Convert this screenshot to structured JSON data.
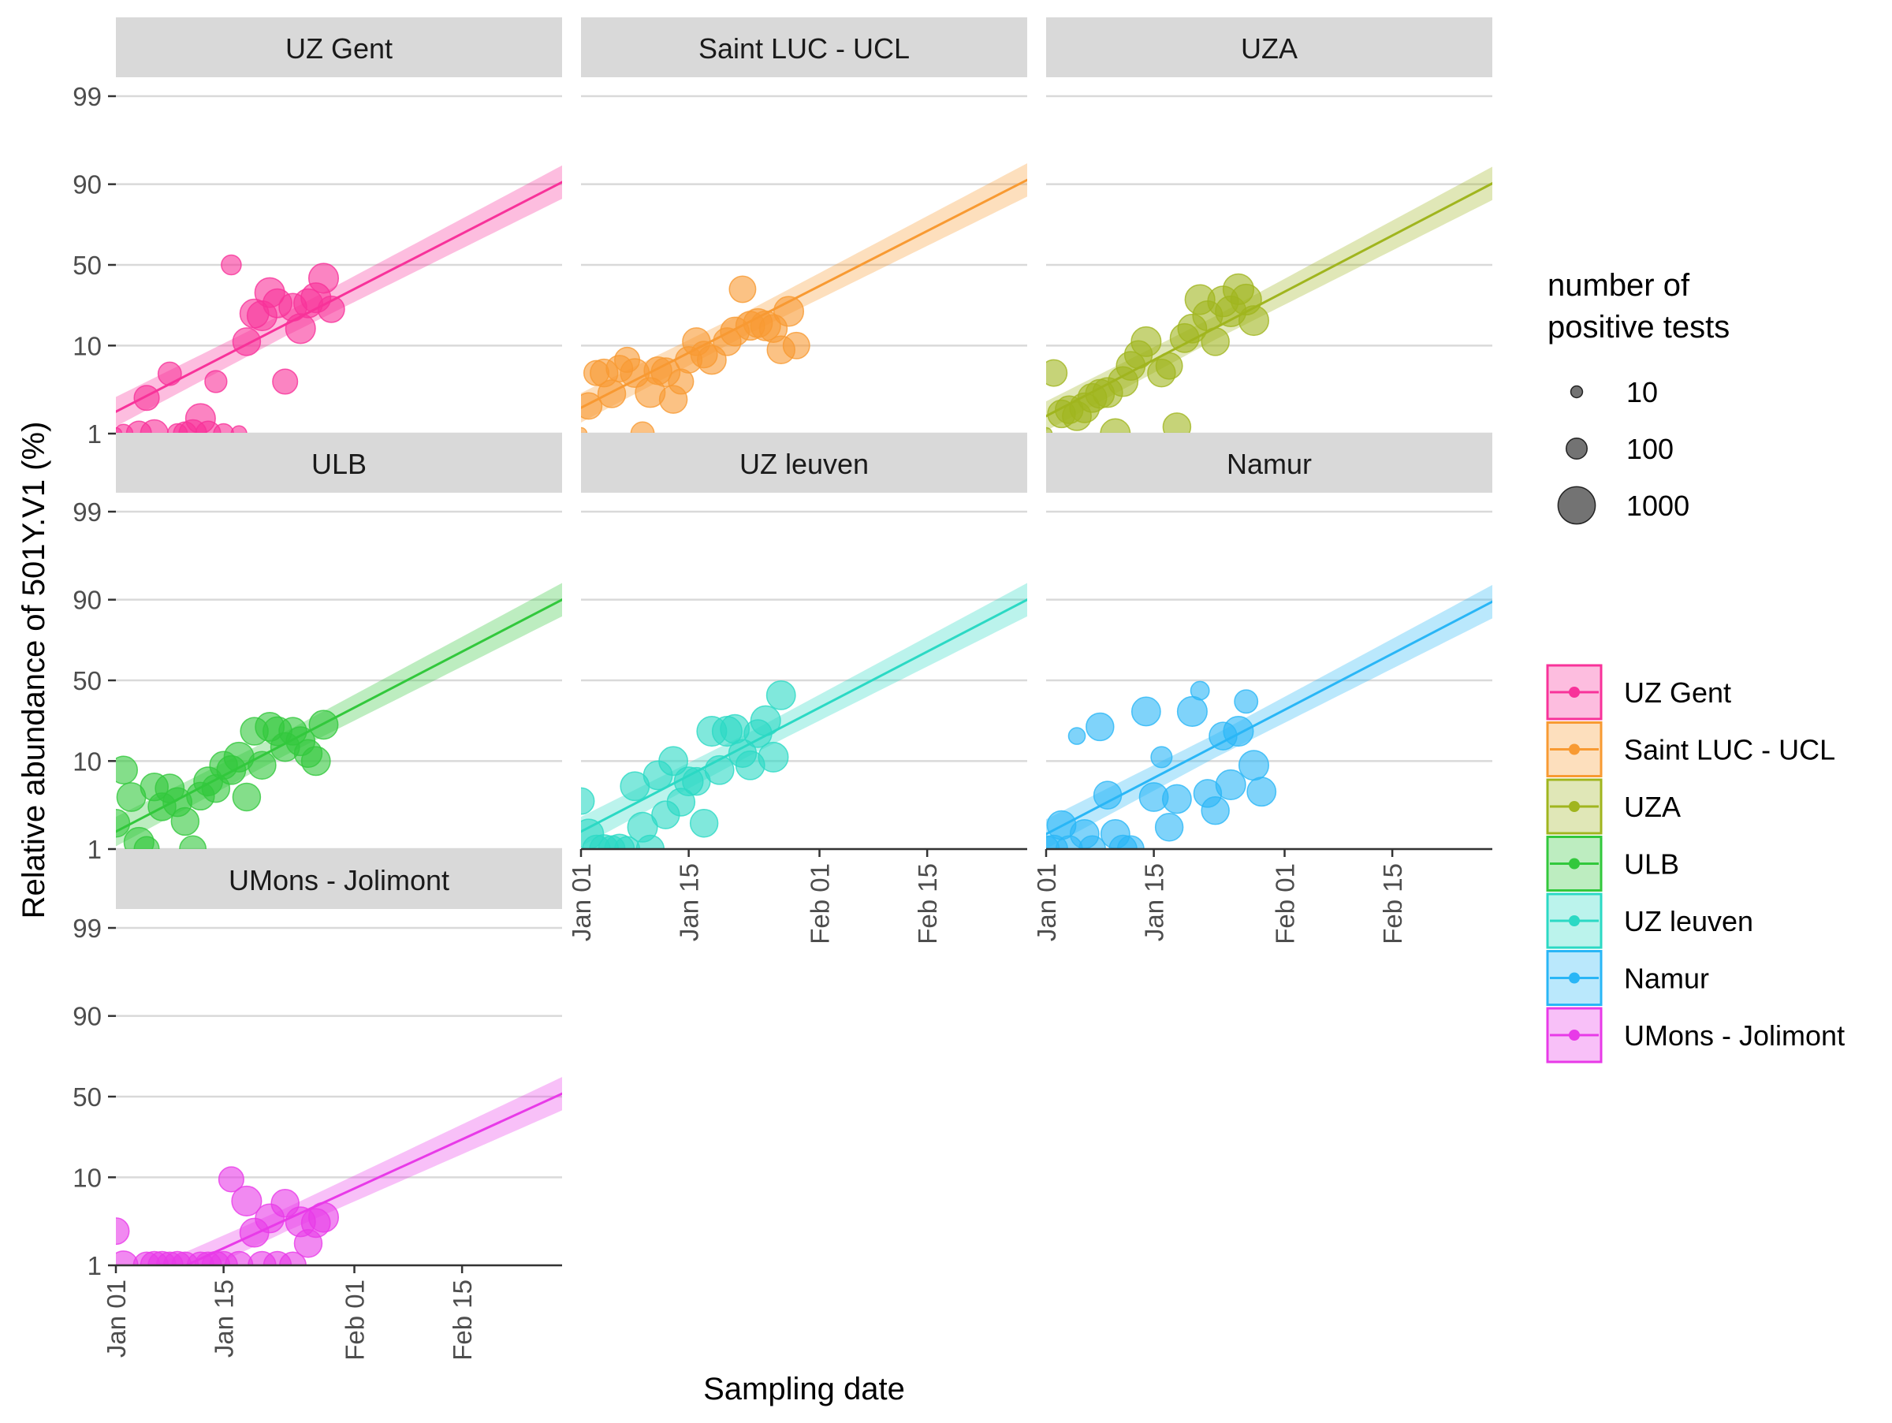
{
  "chart_data": {
    "type": "scatter",
    "title": "",
    "xlabel": "Sampling date",
    "ylabel": "Relative abundance of 501Y.V1 (%)",
    "x_ticks": [
      "Jan 01",
      "Jan 15",
      "Feb 01",
      "Feb 15"
    ],
    "x_tick_days": [
      0,
      14,
      31,
      45
    ],
    "y_ticks": [
      "1",
      "10",
      "50",
      "90",
      "99"
    ],
    "y_tick_values": [
      1,
      10,
      50,
      90,
      99
    ],
    "y_scale": "logit",
    "xlim_days": [
      0,
      58
    ],
    "ylim_pct": [
      1,
      99
    ],
    "grid": true,
    "legend_position": "right",
    "size_legend": {
      "title_line1": "number of",
      "title_line2": "positive tests",
      "entries": [
        "10",
        "100",
        "1000"
      ],
      "entry_values": [
        10,
        100,
        1000
      ]
    },
    "panels": [
      {
        "name": "UZ Gent",
        "color": "#F8329A",
        "fit": {
          "start_pct": 1.8,
          "end_pct": 90.5
        },
        "points": [
          {
            "day": 0,
            "pct": 1,
            "n": 10
          },
          {
            "day": 1,
            "pct": 1,
            "n": 60
          },
          {
            "day": 3,
            "pct": 1,
            "n": 200
          },
          {
            "day": 5,
            "pct": 1,
            "n": 300
          },
          {
            "day": 8,
            "pct": 1,
            "n": 80
          },
          {
            "day": 9,
            "pct": 1,
            "n": 150
          },
          {
            "day": 10,
            "pct": 1,
            "n": 300
          },
          {
            "day": 11,
            "pct": 1.5,
            "n": 400
          },
          {
            "day": 12,
            "pct": 1,
            "n": 200
          },
          {
            "day": 14,
            "pct": 1,
            "n": 80
          },
          {
            "day": 16,
            "pct": 1,
            "n": 30
          },
          {
            "day": 4,
            "pct": 2.6,
            "n": 200
          },
          {
            "day": 7,
            "pct": 4.9,
            "n": 150
          },
          {
            "day": 13,
            "pct": 4,
            "n": 120
          },
          {
            "day": 15,
            "pct": 50,
            "n": 80
          },
          {
            "day": 17,
            "pct": 11,
            "n": 300
          },
          {
            "day": 18,
            "pct": 21,
            "n": 350
          },
          {
            "day": 19,
            "pct": 20,
            "n": 400
          },
          {
            "day": 20,
            "pct": 32,
            "n": 400
          },
          {
            "day": 21,
            "pct": 26,
            "n": 350
          },
          {
            "day": 22,
            "pct": 4,
            "n": 200
          },
          {
            "day": 23,
            "pct": 24,
            "n": 300
          },
          {
            "day": 24,
            "pct": 15,
            "n": 400
          },
          {
            "day": 25,
            "pct": 26,
            "n": 350
          },
          {
            "day": 26,
            "pct": 29,
            "n": 400
          },
          {
            "day": 27,
            "pct": 41,
            "n": 400
          },
          {
            "day": 28,
            "pct": 23,
            "n": 250
          }
        ]
      },
      {
        "name": "Saint LUC - UCL",
        "color": "#F89A32",
        "fit": {
          "start_pct": 2.0,
          "end_pct": 91.0
        },
        "points": [
          {
            "day": 0,
            "pct": 1,
            "n": 10
          },
          {
            "day": 1,
            "pct": 2.1,
            "n": 250
          },
          {
            "day": 2,
            "pct": 5,
            "n": 200
          },
          {
            "day": 3,
            "pct": 5,
            "n": 300
          },
          {
            "day": 4,
            "pct": 2.9,
            "n": 300
          },
          {
            "day": 5,
            "pct": 5.6,
            "n": 250
          },
          {
            "day": 6,
            "pct": 7,
            "n": 200
          },
          {
            "day": 7,
            "pct": 5,
            "n": 350
          },
          {
            "day": 8,
            "pct": 1,
            "n": 150
          },
          {
            "day": 9,
            "pct": 3,
            "n": 400
          },
          {
            "day": 10,
            "pct": 5.3,
            "n": 300
          },
          {
            "day": 11,
            "pct": 5.1,
            "n": 350
          },
          {
            "day": 12,
            "pct": 2.5,
            "n": 300
          },
          {
            "day": 13,
            "pct": 4,
            "n": 200
          },
          {
            "day": 14,
            "pct": 7,
            "n": 250
          },
          {
            "day": 15,
            "pct": 11,
            "n": 300
          },
          {
            "day": 16,
            "pct": 8,
            "n": 250
          },
          {
            "day": 17,
            "pct": 7,
            "n": 350
          },
          {
            "day": 19,
            "pct": 11,
            "n": 300
          },
          {
            "day": 20,
            "pct": 14,
            "n": 350
          },
          {
            "day": 21,
            "pct": 34,
            "n": 250
          },
          {
            "day": 22,
            "pct": 16,
            "n": 350
          },
          {
            "day": 23,
            "pct": 17,
            "n": 350
          },
          {
            "day": 24,
            "pct": 16,
            "n": 400
          },
          {
            "day": 25,
            "pct": 15,
            "n": 300
          },
          {
            "day": 26,
            "pct": 9,
            "n": 300
          },
          {
            "day": 27,
            "pct": 22,
            "n": 400
          },
          {
            "day": 28,
            "pct": 10,
            "n": 250
          }
        ]
      },
      {
        "name": "UZA",
        "color": "#A0B51E",
        "fit": {
          "start_pct": 1.6,
          "end_pct": 90.2
        },
        "points": [
          {
            "day": 0,
            "pct": 1,
            "n": 10
          },
          {
            "day": 1,
            "pct": 5,
            "n": 250
          },
          {
            "day": 2,
            "pct": 1.7,
            "n": 300
          },
          {
            "day": 3,
            "pct": 1.9,
            "n": 300
          },
          {
            "day": 4,
            "pct": 1.6,
            "n": 350
          },
          {
            "day": 5,
            "pct": 2,
            "n": 400
          },
          {
            "day": 6,
            "pct": 2.6,
            "n": 350
          },
          {
            "day": 7,
            "pct": 2.9,
            "n": 350
          },
          {
            "day": 8,
            "pct": 3,
            "n": 400
          },
          {
            "day": 9,
            "pct": 1,
            "n": 400
          },
          {
            "day": 10,
            "pct": 4,
            "n": 400
          },
          {
            "day": 11,
            "pct": 6,
            "n": 350
          },
          {
            "day": 12,
            "pct": 8,
            "n": 300
          },
          {
            "day": 13,
            "pct": 11,
            "n": 400
          },
          {
            "day": 15,
            "pct": 5,
            "n": 300
          },
          {
            "day": 16,
            "pct": 6,
            "n": 250
          },
          {
            "day": 17,
            "pct": 1.2,
            "n": 300
          },
          {
            "day": 18,
            "pct": 12,
            "n": 350
          },
          {
            "day": 19,
            "pct": 15,
            "n": 350
          },
          {
            "day": 20,
            "pct": 28,
            "n": 400
          },
          {
            "day": 21,
            "pct": 20,
            "n": 400
          },
          {
            "day": 22,
            "pct": 11,
            "n": 300
          },
          {
            "day": 23,
            "pct": 27,
            "n": 450
          },
          {
            "day": 24,
            "pct": 22,
            "n": 450
          },
          {
            "day": 25,
            "pct": 34,
            "n": 450
          },
          {
            "day": 26,
            "pct": 28,
            "n": 450
          },
          {
            "day": 27,
            "pct": 18,
            "n": 400
          }
        ]
      },
      {
        "name": "ULB",
        "color": "#32C83C",
        "fit": {
          "start_pct": 1.6,
          "end_pct": 90.0
        },
        "points": [
          {
            "day": 0,
            "pct": 2,
            "n": 300
          },
          {
            "day": 1,
            "pct": 8,
            "n": 300
          },
          {
            "day": 2,
            "pct": 4,
            "n": 350
          },
          {
            "day": 3,
            "pct": 1.2,
            "n": 400
          },
          {
            "day": 4,
            "pct": 1,
            "n": 200
          },
          {
            "day": 5,
            "pct": 5.2,
            "n": 300
          },
          {
            "day": 6,
            "pct": 3.1,
            "n": 300
          },
          {
            "day": 7,
            "pct": 5,
            "n": 350
          },
          {
            "day": 8,
            "pct": 3.5,
            "n": 350
          },
          {
            "day": 9,
            "pct": 2.1,
            "n": 300
          },
          {
            "day": 10,
            "pct": 1,
            "n": 250
          },
          {
            "day": 11,
            "pct": 4.1,
            "n": 300
          },
          {
            "day": 12,
            "pct": 6,
            "n": 350
          },
          {
            "day": 13,
            "pct": 5,
            "n": 300
          },
          {
            "day": 14,
            "pct": 9,
            "n": 300
          },
          {
            "day": 15,
            "pct": 8,
            "n": 350
          },
          {
            "day": 16,
            "pct": 11,
            "n": 400
          },
          {
            "day": 17,
            "pct": 4,
            "n": 300
          },
          {
            "day": 18,
            "pct": 20,
            "n": 300
          },
          {
            "day": 19,
            "pct": 9,
            "n": 300
          },
          {
            "day": 20,
            "pct": 22,
            "n": 350
          },
          {
            "day": 21,
            "pct": 20,
            "n": 350
          },
          {
            "day": 22,
            "pct": 14,
            "n": 350
          },
          {
            "day": 23,
            "pct": 20,
            "n": 300
          },
          {
            "day": 24,
            "pct": 16,
            "n": 350
          },
          {
            "day": 25,
            "pct": 12,
            "n": 300
          },
          {
            "day": 26,
            "pct": 10,
            "n": 350
          },
          {
            "day": 27,
            "pct": 23,
            "n": 350
          }
        ]
      },
      {
        "name": "UZ leuven",
        "color": "#2BD9C4",
        "fit": {
          "start_pct": 1.6,
          "end_pct": 90.0
        },
        "points": [
          {
            "day": 0,
            "pct": 3.6,
            "n": 250
          },
          {
            "day": 1,
            "pct": 1.5,
            "n": 400
          },
          {
            "day": 2,
            "pct": 1,
            "n": 300
          },
          {
            "day": 3,
            "pct": 1,
            "n": 350
          },
          {
            "day": 4,
            "pct": 1,
            "n": 250
          },
          {
            "day": 5,
            "pct": 1,
            "n": 400
          },
          {
            "day": 6,
            "pct": 1,
            "n": 200
          },
          {
            "day": 7,
            "pct": 5.3,
            "n": 350
          },
          {
            "day": 8,
            "pct": 1.8,
            "n": 400
          },
          {
            "day": 9,
            "pct": 1,
            "n": 300
          },
          {
            "day": 10,
            "pct": 7,
            "n": 350
          },
          {
            "day": 11,
            "pct": 2.5,
            "n": 300
          },
          {
            "day": 12,
            "pct": 10,
            "n": 350
          },
          {
            "day": 13,
            "pct": 3.5,
            "n": 300
          },
          {
            "day": 14,
            "pct": 6,
            "n": 350
          },
          {
            "day": 15,
            "pct": 6,
            "n": 300
          },
          {
            "day": 16,
            "pct": 2,
            "n": 300
          },
          {
            "day": 17,
            "pct": 20,
            "n": 400
          },
          {
            "day": 18,
            "pct": 8,
            "n": 350
          },
          {
            "day": 19,
            "pct": 20,
            "n": 400
          },
          {
            "day": 20,
            "pct": 21,
            "n": 350
          },
          {
            "day": 21,
            "pct": 12,
            "n": 300
          },
          {
            "day": 22,
            "pct": 9,
            "n": 350
          },
          {
            "day": 23,
            "pct": 19,
            "n": 300
          },
          {
            "day": 24,
            "pct": 25,
            "n": 400
          },
          {
            "day": 25,
            "pct": 11,
            "n": 400
          },
          {
            "day": 26,
            "pct": 40,
            "n": 350
          }
        ]
      },
      {
        "name": "Namur",
        "color": "#29B6F6",
        "fit": {
          "start_pct": 1.5,
          "end_pct": 89.5
        },
        "points": [
          {
            "day": 0,
            "pct": 1,
            "n": 250
          },
          {
            "day": 1,
            "pct": 1,
            "n": 300
          },
          {
            "day": 2,
            "pct": 1.9,
            "n": 350
          },
          {
            "day": 3,
            "pct": 1,
            "n": 250
          },
          {
            "day": 4,
            "pct": 18,
            "n": 40
          },
          {
            "day": 5,
            "pct": 1.5,
            "n": 350
          },
          {
            "day": 6,
            "pct": 1,
            "n": 250
          },
          {
            "day": 7,
            "pct": 22,
            "n": 300
          },
          {
            "day": 8,
            "pct": 4.2,
            "n": 300
          },
          {
            "day": 9,
            "pct": 1.5,
            "n": 350
          },
          {
            "day": 10,
            "pct": 1,
            "n": 300
          },
          {
            "day": 11,
            "pct": 1,
            "n": 250
          },
          {
            "day": 13,
            "pct": 30,
            "n": 350
          },
          {
            "day": 14,
            "pct": 4,
            "n": 350
          },
          {
            "day": 15,
            "pct": 11,
            "n": 100
          },
          {
            "day": 16,
            "pct": 1.8,
            "n": 300
          },
          {
            "day": 17,
            "pct": 3.8,
            "n": 350
          },
          {
            "day": 19,
            "pct": 30,
            "n": 400
          },
          {
            "day": 20,
            "pct": 43,
            "n": 60
          },
          {
            "day": 21,
            "pct": 4.4,
            "n": 300
          },
          {
            "day": 22,
            "pct": 2.8,
            "n": 300
          },
          {
            "day": 23,
            "pct": 18,
            "n": 300
          },
          {
            "day": 24,
            "pct": 5.5,
            "n": 400
          },
          {
            "day": 25,
            "pct": 20,
            "n": 400
          },
          {
            "day": 26,
            "pct": 36,
            "n": 150
          },
          {
            "day": 27,
            "pct": 9,
            "n": 400
          },
          {
            "day": 28,
            "pct": 4.6,
            "n": 350
          }
        ]
      },
      {
        "name": "UMons - Jolimont",
        "color": "#E83AE8",
        "fit": {
          "start_pct": 0.42,
          "end_pct": 52.0
        },
        "points": [
          {
            "day": 0,
            "pct": 2.5,
            "n": 250
          },
          {
            "day": 1,
            "pct": 1,
            "n": 350
          },
          {
            "day": 4,
            "pct": 1,
            "n": 250
          },
          {
            "day": 5,
            "pct": 1,
            "n": 300
          },
          {
            "day": 6,
            "pct": 1,
            "n": 300
          },
          {
            "day": 7,
            "pct": 1,
            "n": 250
          },
          {
            "day": 8,
            "pct": 1,
            "n": 300
          },
          {
            "day": 9,
            "pct": 1,
            "n": 250
          },
          {
            "day": 11,
            "pct": 1,
            "n": 250
          },
          {
            "day": 12,
            "pct": 1,
            "n": 250
          },
          {
            "day": 13,
            "pct": 1,
            "n": 300
          },
          {
            "day": 14,
            "pct": 1,
            "n": 300
          },
          {
            "day": 15,
            "pct": 9.5,
            "n": 200
          },
          {
            "day": 16,
            "pct": 1,
            "n": 300
          },
          {
            "day": 17,
            "pct": 5.5,
            "n": 400
          },
          {
            "day": 18,
            "pct": 2.4,
            "n": 350
          },
          {
            "day": 19,
            "pct": 1,
            "n": 300
          },
          {
            "day": 20,
            "pct": 3.5,
            "n": 350
          },
          {
            "day": 21,
            "pct": 1,
            "n": 300
          },
          {
            "day": 22,
            "pct": 5.2,
            "n": 300
          },
          {
            "day": 23,
            "pct": 1,
            "n": 250
          },
          {
            "day": 24,
            "pct": 3.2,
            "n": 400
          },
          {
            "day": 25,
            "pct": 1.8,
            "n": 300
          },
          {
            "day": 26,
            "pct": 3.1,
            "n": 350
          },
          {
            "day": 27,
            "pct": 3.6,
            "n": 400
          }
        ]
      }
    ]
  }
}
